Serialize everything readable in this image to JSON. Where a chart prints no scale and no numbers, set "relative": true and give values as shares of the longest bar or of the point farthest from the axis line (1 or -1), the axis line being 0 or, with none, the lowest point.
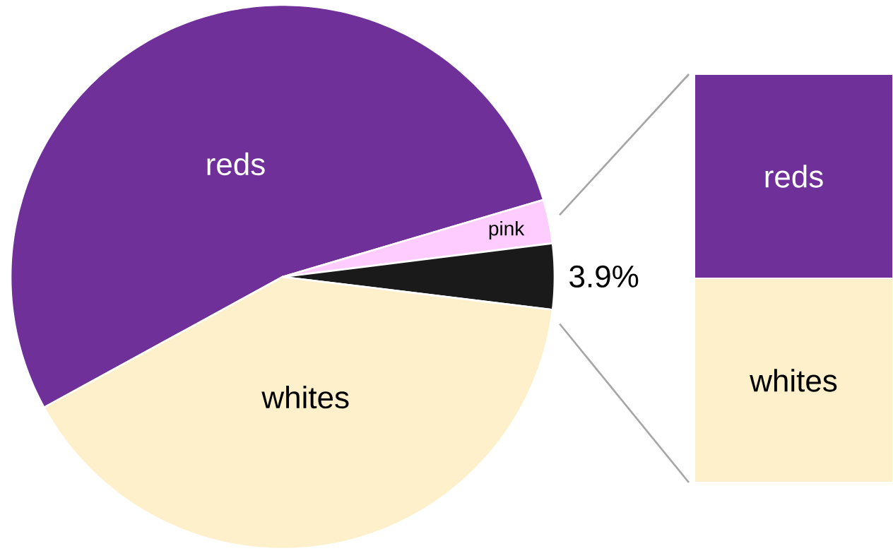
{
  "chart_data": [
    {
      "type": "pie",
      "categories": [
        "reds",
        "pink",
        null,
        "whites"
      ],
      "values": [
        53.4,
        2.6,
        3.9,
        40.1
      ],
      "colors": [
        "#70309a",
        "#ffccff",
        "#1a1a1a",
        "#fff0cc"
      ],
      "value_labels": [
        null,
        null,
        "3.9%",
        null
      ]
    },
    {
      "type": "bar",
      "stacked": true,
      "relative": true,
      "categories": [
        null
      ],
      "series": [
        {
          "name": "whites",
          "color": "#fff0cc",
          "values": [
            0.5
          ]
        },
        {
          "name": "reds",
          "color": "#70309a",
          "values": [
            0.5
          ]
        }
      ]
    }
  ]
}
